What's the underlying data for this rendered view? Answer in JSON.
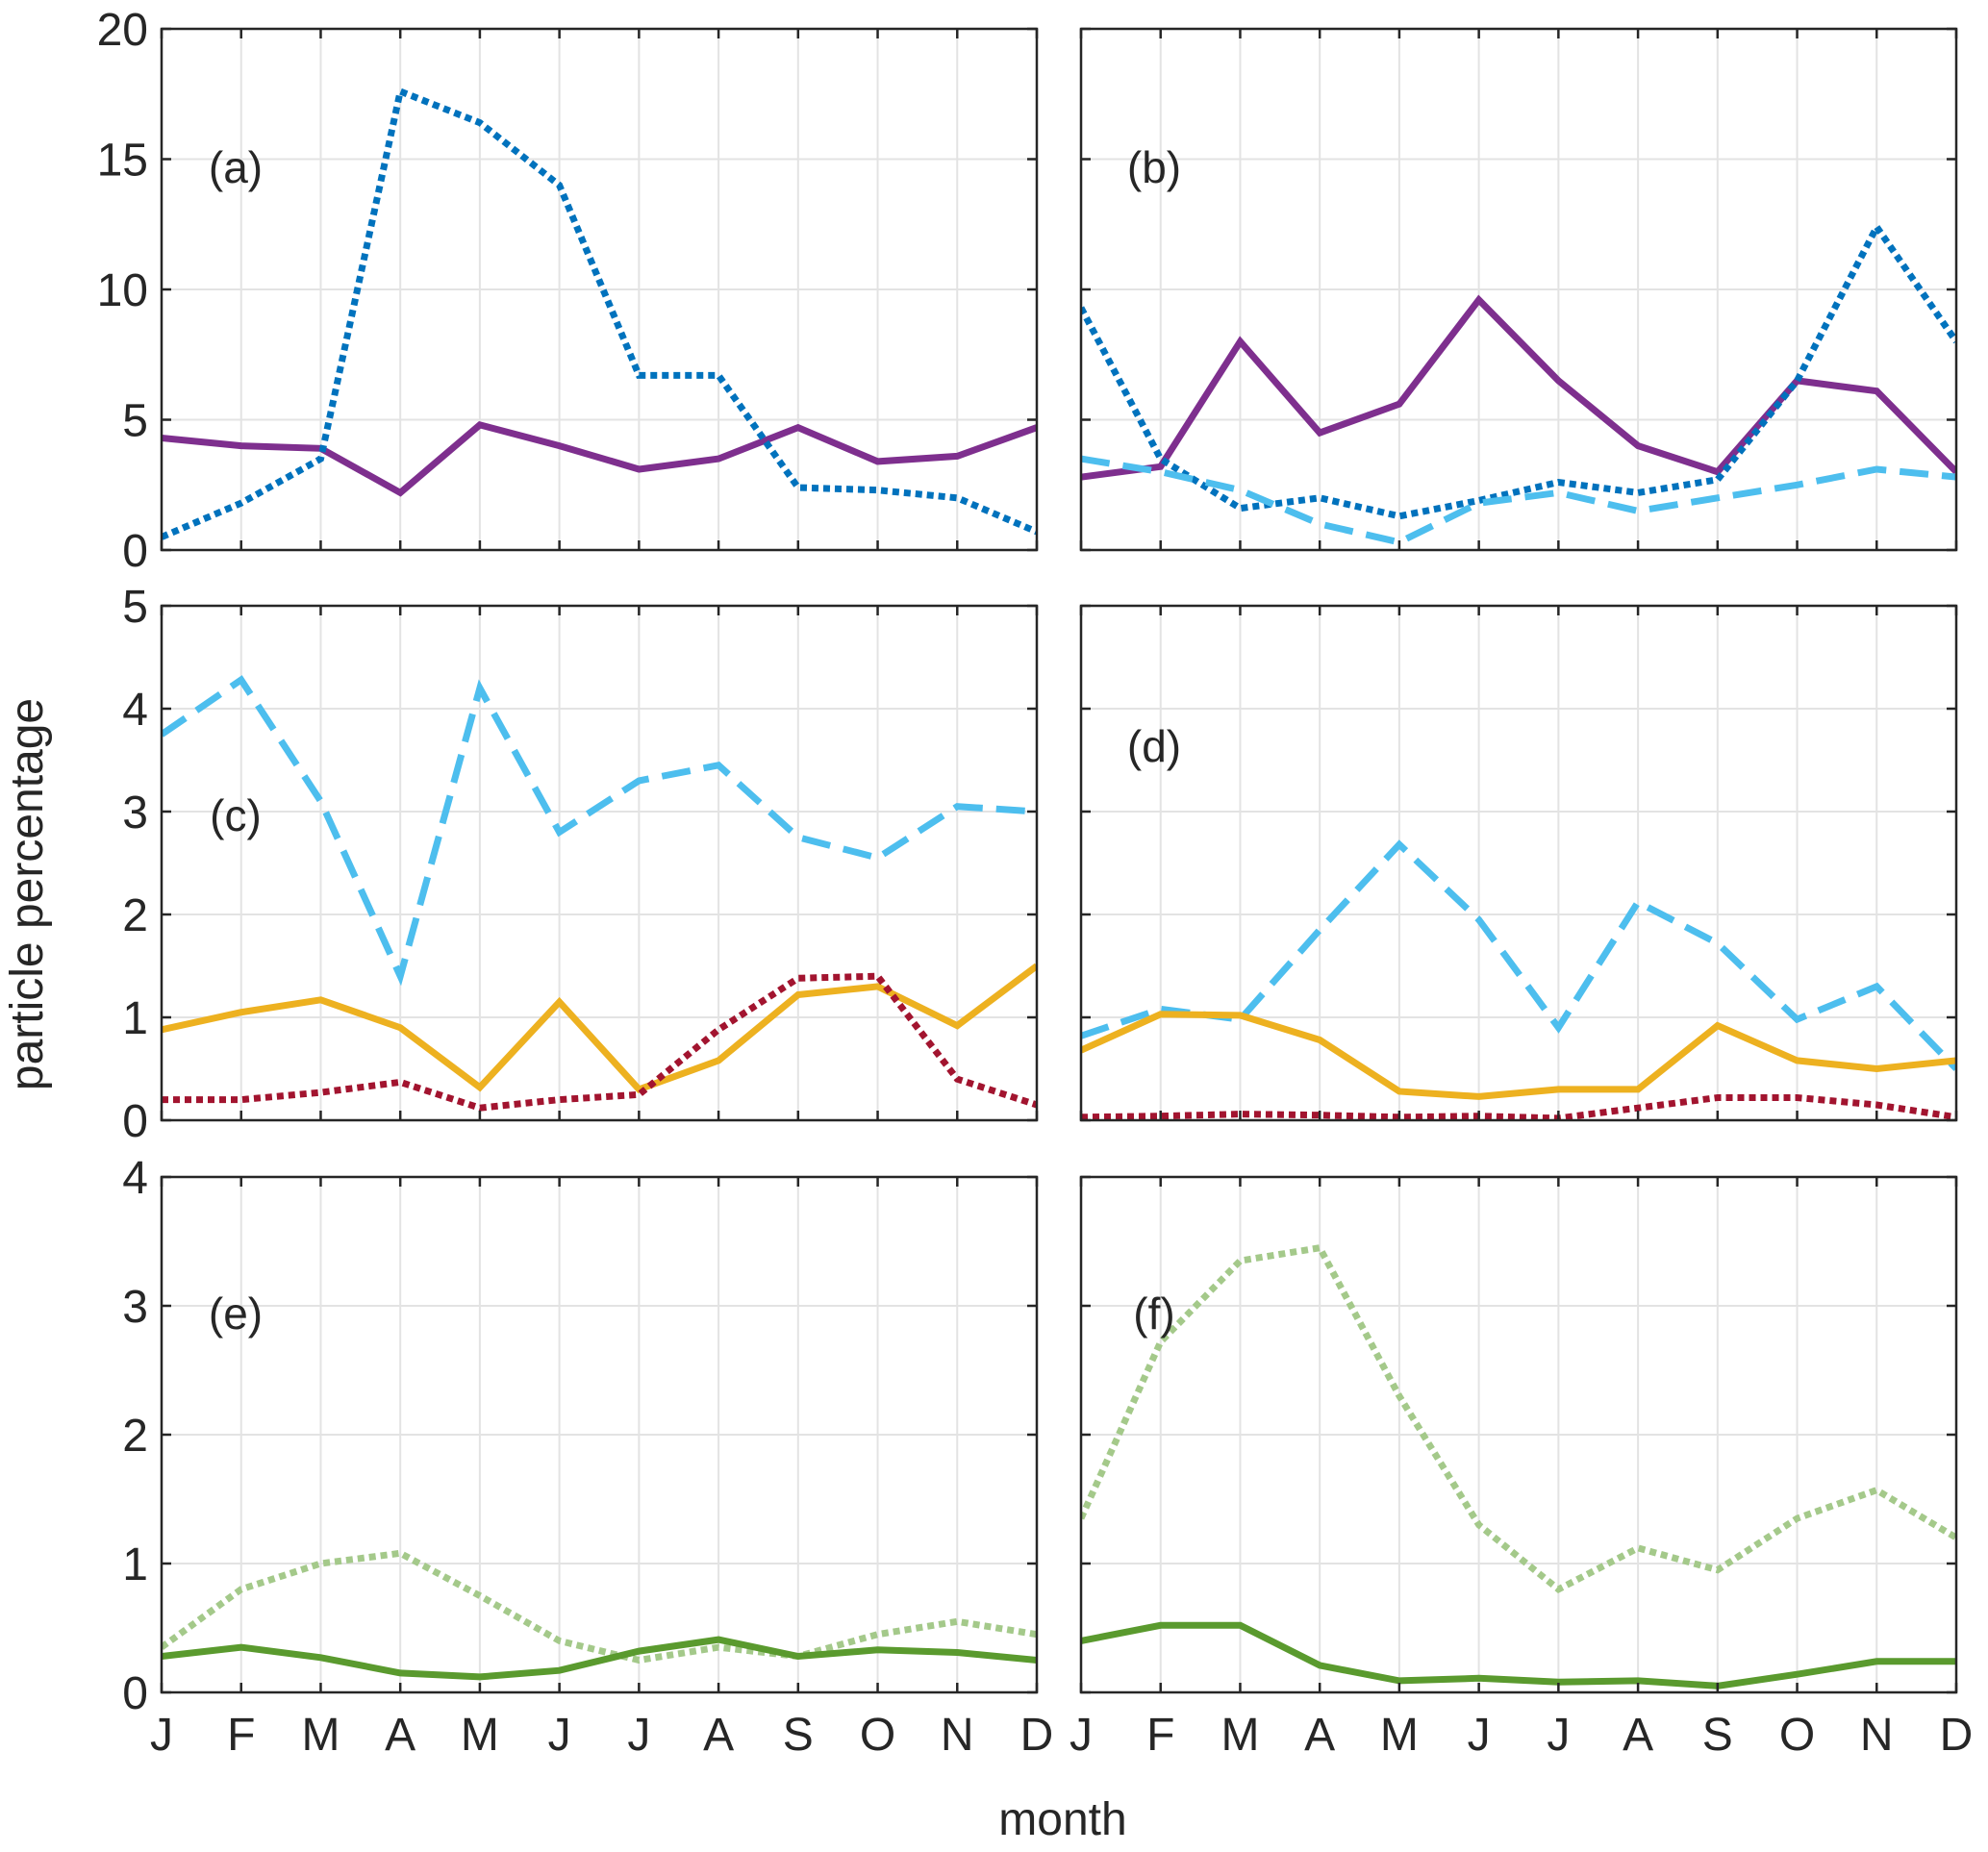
{
  "figure": {
    "ylabel": "particle percentage",
    "xlabel": "month"
  },
  "months": [
    "J",
    "F",
    "M",
    "A",
    "M",
    "J",
    "J",
    "A",
    "S",
    "O",
    "N",
    "D"
  ],
  "chart_data": [
    {
      "type": "line",
      "label": "(a)",
      "ylim": [
        0,
        20
      ],
      "yticks": [
        "0",
        "5",
        "10",
        "15",
        "20"
      ],
      "grid": true,
      "categories": [
        "J",
        "F",
        "M",
        "A",
        "M",
        "J",
        "J",
        "A",
        "S",
        "O",
        "N",
        "D"
      ],
      "series": [
        {
          "name": "purple solid",
          "color": "#7e2f8e",
          "style": "solid",
          "values": [
            4.3,
            4.0,
            3.9,
            2.2,
            4.8,
            4.0,
            3.1,
            3.5,
            4.7,
            3.4,
            3.6,
            4.7
          ]
        },
        {
          "name": "blue dotted",
          "color": "#0072bd",
          "style": "dotted",
          "values": [
            0.5,
            1.8,
            3.5,
            17.6,
            16.4,
            14.0,
            6.7,
            6.7,
            2.4,
            2.3,
            2.0,
            0.7
          ]
        }
      ]
    },
    {
      "type": "line",
      "label": "(b)",
      "ylim": [
        0,
        20
      ],
      "yticks": [
        "0",
        "5",
        "10",
        "15",
        "20"
      ],
      "grid": true,
      "categories": [
        "J",
        "F",
        "M",
        "A",
        "M",
        "J",
        "J",
        "A",
        "S",
        "O",
        "N",
        "D"
      ],
      "series": [
        {
          "name": "purple solid",
          "color": "#7e2f8e",
          "style": "solid",
          "values": [
            2.8,
            3.2,
            8.0,
            4.5,
            5.6,
            9.6,
            6.5,
            4.0,
            3.0,
            6.5,
            6.1,
            3.0
          ]
        },
        {
          "name": "blue dotted",
          "color": "#0072bd",
          "style": "dotted",
          "values": [
            9.3,
            3.5,
            1.6,
            2.0,
            1.3,
            1.9,
            2.6,
            2.2,
            2.7,
            6.5,
            12.4,
            8.0
          ]
        },
        {
          "name": "light blue dashed",
          "color": "#4dbeee",
          "style": "dashed",
          "values": [
            3.5,
            3.0,
            2.3,
            1.0,
            0.3,
            1.8,
            2.2,
            1.5,
            2.0,
            2.5,
            3.1,
            2.8
          ]
        }
      ]
    },
    {
      "type": "line",
      "label": "(c)",
      "ylim": [
        0,
        5
      ],
      "yticks": [
        "0",
        "1",
        "2",
        "3",
        "4",
        "5"
      ],
      "grid": true,
      "categories": [
        "J",
        "F",
        "M",
        "A",
        "M",
        "J",
        "J",
        "A",
        "S",
        "O",
        "N",
        "D"
      ],
      "series": [
        {
          "name": "light blue dashed",
          "color": "#4dbeee",
          "style": "dashed",
          "values": [
            3.75,
            4.28,
            3.1,
            1.4,
            4.2,
            2.8,
            3.3,
            3.45,
            2.75,
            2.55,
            3.05,
            3.0
          ]
        },
        {
          "name": "yellow solid",
          "color": "#edb120",
          "style": "solid",
          "values": [
            0.88,
            1.05,
            1.17,
            0.9,
            0.32,
            1.15,
            0.3,
            0.58,
            1.22,
            1.3,
            0.92,
            1.5
          ]
        },
        {
          "name": "red dotted",
          "color": "#a2142f",
          "style": "dotted",
          "values": [
            0.2,
            0.2,
            0.27,
            0.37,
            0.12,
            0.2,
            0.25,
            0.88,
            1.38,
            1.4,
            0.4,
            0.15
          ]
        }
      ]
    },
    {
      "type": "line",
      "label": "(d)",
      "ylim": [
        0,
        5
      ],
      "yticks": [
        "0",
        "1",
        "2",
        "3",
        "4",
        "5"
      ],
      "grid": true,
      "categories": [
        "J",
        "F",
        "M",
        "A",
        "M",
        "J",
        "J",
        "A",
        "S",
        "O",
        "N",
        "D"
      ],
      "series": [
        {
          "name": "light blue dashed",
          "color": "#4dbeee",
          "style": "dashed",
          "values": [
            0.82,
            1.08,
            0.98,
            1.85,
            2.68,
            1.95,
            0.9,
            2.12,
            1.72,
            0.98,
            1.3,
            0.5
          ]
        },
        {
          "name": "yellow solid",
          "color": "#edb120",
          "style": "solid",
          "values": [
            0.68,
            1.03,
            1.02,
            0.78,
            0.28,
            0.23,
            0.3,
            0.3,
            0.92,
            0.58,
            0.5,
            0.58
          ]
        },
        {
          "name": "red dotted",
          "color": "#a2142f",
          "style": "dotted",
          "values": [
            0.03,
            0.04,
            0.06,
            0.05,
            0.03,
            0.04,
            0.02,
            0.12,
            0.22,
            0.22,
            0.15,
            0.03
          ]
        }
      ]
    },
    {
      "type": "line",
      "label": "(e)",
      "ylim": [
        0,
        4
      ],
      "yticks": [
        "0",
        "1",
        "2",
        "3",
        "4"
      ],
      "grid": true,
      "categories": [
        "J",
        "F",
        "M",
        "A",
        "M",
        "J",
        "J",
        "A",
        "S",
        "O",
        "N",
        "D"
      ],
      "series": [
        {
          "name": "light green dotted",
          "color": "#a4c98a",
          "style": "dotted",
          "values": [
            0.35,
            0.8,
            1.0,
            1.08,
            0.75,
            0.4,
            0.25,
            0.35,
            0.28,
            0.45,
            0.55,
            0.45
          ]
        },
        {
          "name": "dark green solid",
          "color": "#5a9a2e",
          "style": "solid",
          "values": [
            0.28,
            0.35,
            0.27,
            0.15,
            0.12,
            0.17,
            0.32,
            0.41,
            0.28,
            0.33,
            0.31,
            0.25
          ]
        }
      ]
    },
    {
      "type": "line",
      "label": "(f)",
      "ylim": [
        0,
        4
      ],
      "yticks": [
        "0",
        "1",
        "2",
        "3",
        "4"
      ],
      "grid": true,
      "categories": [
        "J",
        "F",
        "M",
        "A",
        "M",
        "J",
        "J",
        "A",
        "S",
        "O",
        "N",
        "D"
      ],
      "series": [
        {
          "name": "light green dotted",
          "color": "#a4c98a",
          "style": "dotted",
          "values": [
            1.35,
            2.72,
            3.35,
            3.45,
            2.3,
            1.3,
            0.8,
            1.12,
            0.95,
            1.35,
            1.57,
            1.2
          ]
        },
        {
          "name": "dark green solid",
          "color": "#5a9a2e",
          "style": "solid",
          "values": [
            0.4,
            0.52,
            0.52,
            0.21,
            0.09,
            0.11,
            0.08,
            0.09,
            0.05,
            0.14,
            0.24,
            0.24
          ]
        }
      ]
    }
  ]
}
